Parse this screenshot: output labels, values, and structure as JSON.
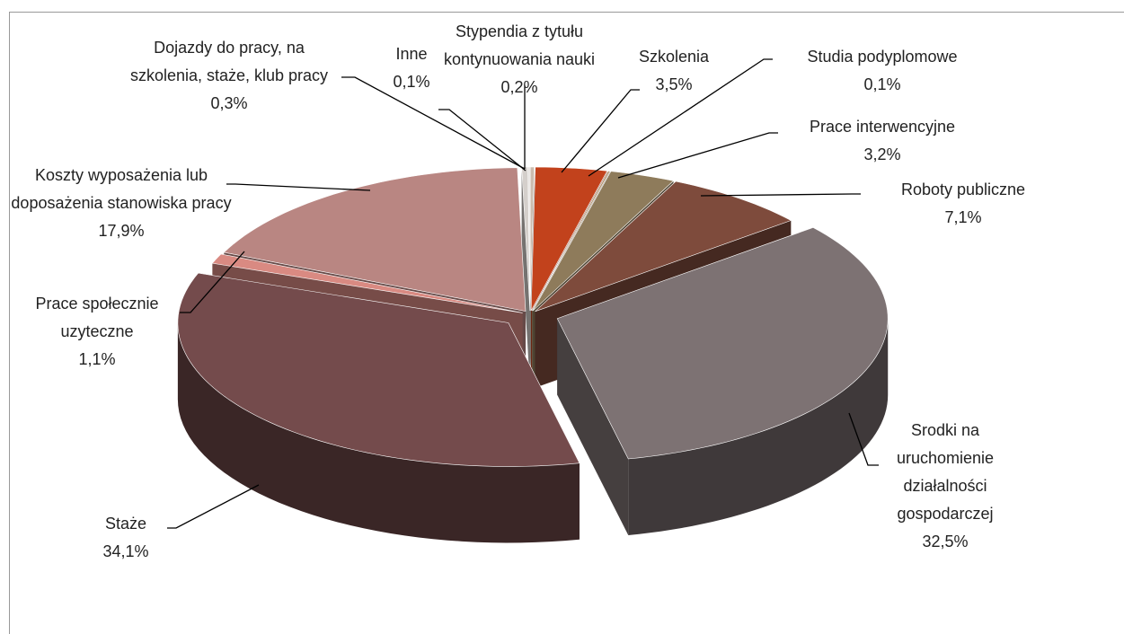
{
  "chart_data": {
    "type": "pie",
    "categories": [
      "Stypendia z tytułu kontynuowania nauki",
      "Szkolenia",
      "Studia podyplomowe",
      "Prace interwencyjne",
      "Roboty publiczne",
      "Srodki na uruchomienie działalności gospodarczej",
      "Staże",
      "Prace społecznie uzyteczne",
      "Koszty wyposażenia lub doposażenia stanowiska pracy",
      "Dojazdy do pracy, na szkolenia, staże, klub pracy",
      "Inne"
    ],
    "values": [
      0.2,
      3.5,
      0.1,
      3.2,
      7.1,
      32.5,
      34.1,
      1.1,
      17.9,
      0.3,
      0.1
    ],
    "value_labels": [
      "0,2%",
      "3,5%",
      "0,1%",
      "3,2%",
      "7,1%",
      "32,5%",
      "34,1%",
      "1,1%",
      "17,9%",
      "0,3%",
      "0,1%"
    ],
    "colors": [
      "#cbbcae",
      "#c2421c",
      "#b39572",
      "#8e7b5b",
      "#7e4b3c",
      "#7d7273",
      "#744b4c",
      "#d98a82",
      "#b98682",
      "#d4cfcb",
      "#e4e0dd"
    ]
  }
}
